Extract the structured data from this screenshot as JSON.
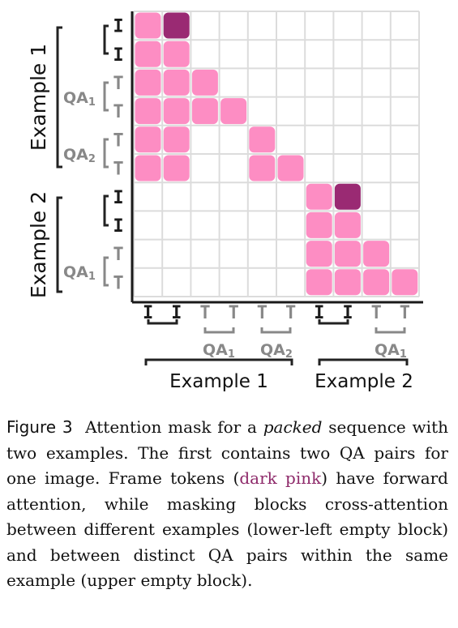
{
  "colors": {
    "allowed": "#fd8dc3",
    "frame": "#9a2a73",
    "grid": "#dcdcdc",
    "axis": "#1a1a1a",
    "muted": "#888888"
  },
  "token_labels": [
    "I",
    "I",
    "T",
    "T",
    "T",
    "T",
    "I",
    "I",
    "T",
    "T"
  ],
  "mask": [
    [
      1,
      2,
      0,
      0,
      0,
      0,
      0,
      0,
      0,
      0
    ],
    [
      1,
      1,
      0,
      0,
      0,
      0,
      0,
      0,
      0,
      0
    ],
    [
      1,
      1,
      1,
      0,
      0,
      0,
      0,
      0,
      0,
      0
    ],
    [
      1,
      1,
      1,
      1,
      0,
      0,
      0,
      0,
      0,
      0
    ],
    [
      1,
      1,
      0,
      0,
      1,
      0,
      0,
      0,
      0,
      0
    ],
    [
      1,
      1,
      0,
      0,
      1,
      1,
      0,
      0,
      0,
      0
    ],
    [
      0,
      0,
      0,
      0,
      0,
      0,
      1,
      2,
      0,
      0
    ],
    [
      0,
      0,
      0,
      0,
      0,
      0,
      1,
      1,
      0,
      0
    ],
    [
      0,
      0,
      0,
      0,
      0,
      0,
      1,
      1,
      1,
      0
    ],
    [
      0,
      0,
      0,
      0,
      0,
      0,
      1,
      1,
      1,
      1
    ]
  ],
  "groups": {
    "example1": "Example 1",
    "example2": "Example 2",
    "qa1_base": "QA",
    "qa1_sub": "1",
    "qa2_base": "QA",
    "qa2_sub": "2"
  },
  "caption": {
    "label": "Figure 3",
    "part1": "Attention mask for a ",
    "em": "packed",
    "part2": " sequence with two examples. The first contains two QA pairs for one image. Frame tokens (",
    "pink": "dark pink",
    "part3": ") have forward attention, while masking blocks cross-attention between different examples (lower-left empty block) and between distinct QA pairs within the same example (upper empty block)."
  }
}
